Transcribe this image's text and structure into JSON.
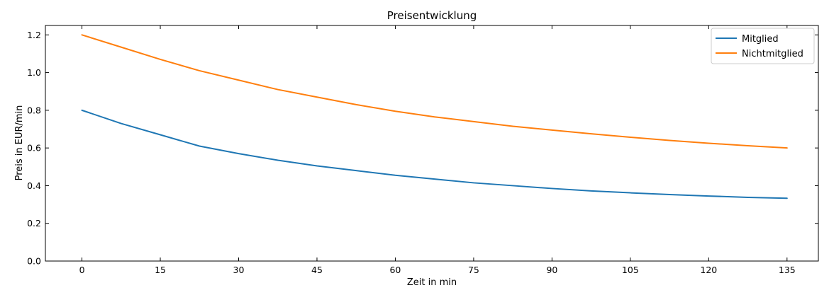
{
  "chart_data": {
    "type": "line",
    "title": "Preisentwicklung",
    "xlabel": "Zeit in min",
    "ylabel": "Preis in EUR/min",
    "xlim": [
      -7,
      141
    ],
    "ylim": [
      0.0,
      1.25
    ],
    "x_ticks": [
      0,
      15,
      30,
      45,
      60,
      75,
      90,
      105,
      120,
      135
    ],
    "x_tick_labels": [
      "0",
      "15",
      "30",
      "45",
      "60",
      "75",
      "90",
      "105",
      "120",
      "135"
    ],
    "y_ticks": [
      0.0,
      0.2,
      0.4,
      0.6,
      0.8,
      1.0,
      1.2
    ],
    "y_tick_labels": [
      "0.0",
      "0.2",
      "0.4",
      "0.6",
      "0.8",
      "1.0",
      "1.2"
    ],
    "grid": false,
    "legend_position": "top-right",
    "x": [
      0,
      7.5,
      15,
      22.5,
      30,
      37.5,
      45,
      52.5,
      60,
      67.5,
      75,
      82.5,
      90,
      97.5,
      105,
      112.5,
      120,
      127.5,
      135
    ],
    "series": [
      {
        "name": "Mitglied",
        "color": "#1f77b4",
        "values": [
          0.8,
          0.73,
          0.67,
          0.61,
          0.57,
          0.535,
          0.505,
          0.48,
          0.455,
          0.435,
          0.415,
          0.4,
          0.385,
          0.372,
          0.362,
          0.353,
          0.345,
          0.338,
          0.333
        ]
      },
      {
        "name": "Nichtmitglied",
        "color": "#ff7f0e",
        "values": [
          1.2,
          1.135,
          1.07,
          1.01,
          0.96,
          0.91,
          0.87,
          0.83,
          0.795,
          0.765,
          0.74,
          0.715,
          0.695,
          0.675,
          0.657,
          0.64,
          0.625,
          0.612,
          0.6
        ]
      }
    ]
  }
}
